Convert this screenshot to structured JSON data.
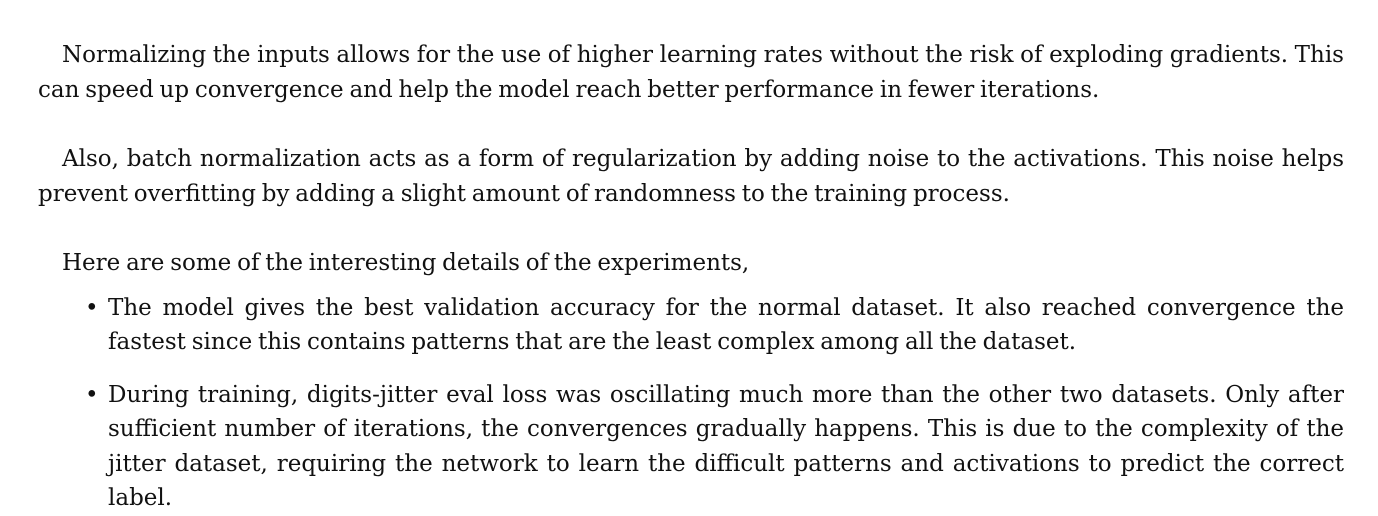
{
  "paragraphs": [
    "Normalizing the inputs allows for the use of higher learning rates without the risk of exploding gradients. This can speed up convergence and help the model reach better performance in fewer iterations.",
    "Also, batch normalization acts as a form of regularization by adding noise to the activations. This noise helps prevent overfitting by adding a slight amount of randomness to the training process."
  ],
  "details_intro": "Here are some of the interesting details of the experiments,",
  "bullet_glyph": "•",
  "details": [
    "The model gives the best validation accuracy for the normal dataset. It also reached convergence the fastest since this contains patterns that are the least complex among all the dataset.",
    "During training, digits-jitter eval loss was oscillating much more than the other two datasets. Only after sufficient number of iterations, the convergences gradually happens. This is due to the complexity of the jitter dataset, requiring the network to learn the difficult patterns and activations to predict the correct label."
  ]
}
